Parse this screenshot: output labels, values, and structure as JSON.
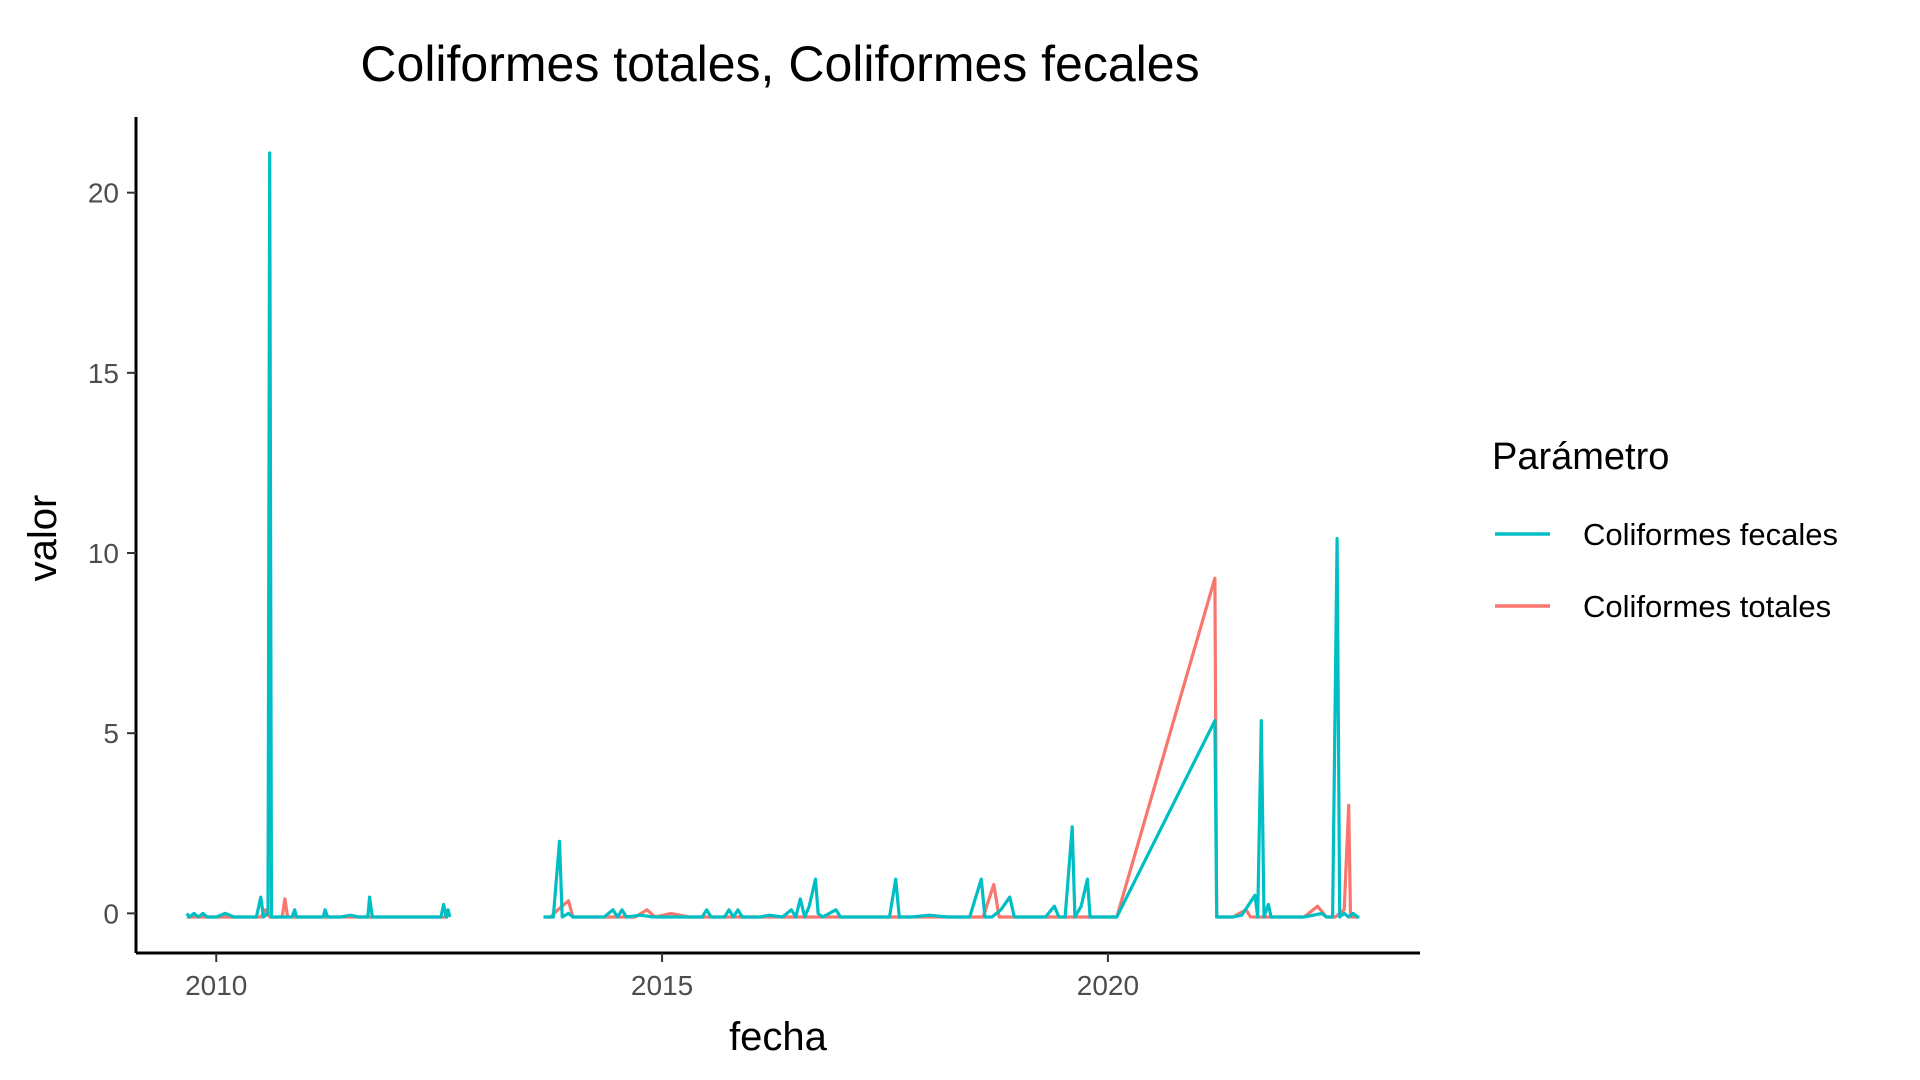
{
  "chart_data": {
    "type": "line",
    "title": "Coliformes totales, Coliformes fecales",
    "xlabel": "fecha",
    "ylabel": "valor",
    "xlim": [
      2009.1,
      2023.5
    ],
    "ylim": [
      -1.1,
      22.1
    ],
    "x_ticks": [
      2010,
      2015,
      2020
    ],
    "x_tick_labels": [
      "2010",
      "2015",
      "2020"
    ],
    "y_ticks": [
      0,
      5,
      10,
      15,
      20
    ],
    "y_tick_labels": [
      "0",
      "5",
      "10",
      "15",
      "20"
    ],
    "grid": false,
    "legend": {
      "title": "Parámetro",
      "position": "right",
      "entries": [
        "Coliformes fecales",
        "Coliformes totales"
      ]
    },
    "series": [
      {
        "name": "Coliformes totales",
        "color": "#F8766D",
        "segments": [
          [
            [
              2009.67,
              -0.1
            ],
            [
              2009.75,
              -0.1
            ],
            [
              2009.83,
              -0.1
            ],
            [
              2009.92,
              -0.1
            ],
            [
              2010.0,
              -0.1
            ],
            [
              2010.17,
              -0.1
            ],
            [
              2010.33,
              -0.1
            ],
            [
              2010.5,
              -0.1
            ],
            [
              2010.55,
              0.1
            ],
            [
              2010.6,
              -0.1
            ],
            [
              2010.74,
              -0.1
            ],
            [
              2010.77,
              0.4
            ],
            [
              2010.8,
              -0.1
            ],
            [
              2011.0,
              -0.1
            ],
            [
              2011.25,
              -0.1
            ],
            [
              2011.5,
              -0.1
            ],
            [
              2011.75,
              -0.1
            ],
            [
              2012.0,
              -0.1
            ],
            [
              2012.25,
              -0.1
            ],
            [
              2012.5,
              -0.1
            ],
            [
              2012.6,
              -0.1
            ]
          ],
          [
            [
              2013.67,
              -0.1
            ],
            [
              2013.75,
              -0.1
            ],
            [
              2013.83,
              0.1
            ],
            [
              2013.95,
              0.35
            ],
            [
              2014.0,
              -0.1
            ],
            [
              2014.2,
              -0.1
            ],
            [
              2014.4,
              -0.1
            ],
            [
              2014.55,
              -0.1
            ],
            [
              2014.7,
              -0.1
            ],
            [
              2014.83,
              0.1
            ],
            [
              2014.92,
              -0.1
            ],
            [
              2015.1,
              0.0
            ],
            [
              2015.3,
              -0.1
            ],
            [
              2015.6,
              -0.1
            ],
            [
              2015.9,
              -0.1
            ],
            [
              2016.1,
              -0.1
            ],
            [
              2016.4,
              -0.1
            ],
            [
              2016.6,
              -0.1
            ],
            [
              2016.9,
              -0.1
            ],
            [
              2017.1,
              -0.1
            ],
            [
              2017.4,
              -0.1
            ],
            [
              2017.6,
              -0.1
            ],
            [
              2017.9,
              -0.1
            ],
            [
              2018.1,
              -0.1
            ],
            [
              2018.4,
              -0.1
            ],
            [
              2018.6,
              -0.1
            ],
            [
              2018.72,
              0.8
            ],
            [
              2018.78,
              -0.1
            ],
            [
              2019.0,
              -0.1
            ],
            [
              2019.3,
              -0.1
            ],
            [
              2019.6,
              -0.1
            ],
            [
              2019.9,
              -0.1
            ],
            [
              2020.1,
              -0.1
            ],
            [
              2021.2,
              9.3
            ],
            [
              2021.22,
              -0.1
            ],
            [
              2021.4,
              -0.1
            ],
            [
              2021.55,
              0.1
            ],
            [
              2021.6,
              -0.1
            ],
            [
              2021.8,
              -0.1
            ],
            [
              2022.0,
              -0.1
            ],
            [
              2022.2,
              -0.1
            ],
            [
              2022.35,
              0.2
            ],
            [
              2022.45,
              -0.1
            ],
            [
              2022.55,
              -0.1
            ],
            [
              2022.65,
              0.1
            ],
            [
              2022.7,
              3.0
            ],
            [
              2022.72,
              -0.1
            ],
            [
              2022.8,
              -0.1
            ]
          ]
        ]
      },
      {
        "name": "Coliformes fecales",
        "color": "#00BFC4",
        "segments": [
          [
            [
              2009.67,
              0.0
            ],
            [
              2009.7,
              -0.1
            ],
            [
              2009.75,
              0.0
            ],
            [
              2009.8,
              -0.1
            ],
            [
              2009.85,
              0.0
            ],
            [
              2009.9,
              -0.1
            ],
            [
              2010.0,
              -0.1
            ],
            [
              2010.1,
              0.0
            ],
            [
              2010.2,
              -0.1
            ],
            [
              2010.3,
              -0.1
            ],
            [
              2010.45,
              -0.1
            ],
            [
              2010.5,
              0.45
            ],
            [
              2010.53,
              -0.1
            ],
            [
              2010.58,
              0.0
            ],
            [
              2010.6,
              21.1
            ],
            [
              2010.62,
              -0.1
            ],
            [
              2010.7,
              -0.1
            ],
            [
              2010.85,
              -0.1
            ],
            [
              2010.88,
              0.1
            ],
            [
              2010.9,
              -0.1
            ],
            [
              2011.1,
              -0.1
            ],
            [
              2011.2,
              -0.1
            ],
            [
              2011.22,
              0.1
            ],
            [
              2011.25,
              -0.1
            ],
            [
              2011.4,
              -0.1
            ],
            [
              2011.5,
              -0.05
            ],
            [
              2011.6,
              -0.1
            ],
            [
              2011.7,
              -0.1
            ],
            [
              2011.72,
              0.45
            ],
            [
              2011.75,
              -0.1
            ],
            [
              2012.0,
              -0.1
            ],
            [
              2012.2,
              -0.1
            ],
            [
              2012.4,
              -0.1
            ],
            [
              2012.52,
              -0.1
            ],
            [
              2012.55,
              0.25
            ],
            [
              2012.58,
              -0.1
            ],
            [
              2012.6,
              0.1
            ],
            [
              2012.62,
              -0.1
            ]
          ],
          [
            [
              2013.67,
              -0.1
            ],
            [
              2013.78,
              -0.1
            ],
            [
              2013.85,
              2.0
            ],
            [
              2013.88,
              -0.1
            ],
            [
              2013.95,
              0.0
            ],
            [
              2014.0,
              -0.1
            ],
            [
              2014.2,
              -0.1
            ],
            [
              2014.35,
              -0.1
            ],
            [
              2014.45,
              0.1
            ],
            [
              2014.5,
              -0.1
            ],
            [
              2014.55,
              0.1
            ],
            [
              2014.6,
              -0.1
            ],
            [
              2014.75,
              -0.05
            ],
            [
              2014.9,
              -0.1
            ],
            [
              2015.1,
              -0.1
            ],
            [
              2015.3,
              -0.1
            ],
            [
              2015.45,
              -0.1
            ],
            [
              2015.5,
              0.1
            ],
            [
              2015.55,
              -0.1
            ],
            [
              2015.7,
              -0.1
            ],
            [
              2015.75,
              0.1
            ],
            [
              2015.8,
              -0.1
            ],
            [
              2015.85,
              0.1
            ],
            [
              2015.9,
              -0.1
            ],
            [
              2016.1,
              -0.1
            ],
            [
              2016.2,
              -0.05
            ],
            [
              2016.35,
              -0.1
            ],
            [
              2016.45,
              0.1
            ],
            [
              2016.5,
              -0.1
            ],
            [
              2016.55,
              0.4
            ],
            [
              2016.6,
              -0.1
            ],
            [
              2016.65,
              0.2
            ],
            [
              2016.72,
              0.95
            ],
            [
              2016.75,
              0.0
            ],
            [
              2016.8,
              -0.1
            ],
            [
              2016.95,
              0.1
            ],
            [
              2017.0,
              -0.1
            ],
            [
              2017.2,
              -0.1
            ],
            [
              2017.4,
              -0.1
            ],
            [
              2017.55,
              -0.1
            ],
            [
              2017.62,
              0.95
            ],
            [
              2017.66,
              -0.1
            ],
            [
              2017.8,
              -0.1
            ],
            [
              2018.0,
              -0.05
            ],
            [
              2018.2,
              -0.1
            ],
            [
              2018.45,
              -0.1
            ],
            [
              2018.58,
              0.95
            ],
            [
              2018.62,
              -0.1
            ],
            [
              2018.7,
              -0.1
            ],
            [
              2018.8,
              0.1
            ],
            [
              2018.9,
              0.45
            ],
            [
              2018.95,
              -0.1
            ],
            [
              2019.1,
              -0.1
            ],
            [
              2019.3,
              -0.1
            ],
            [
              2019.4,
              0.2
            ],
            [
              2019.45,
              -0.1
            ],
            [
              2019.52,
              -0.1
            ],
            [
              2019.6,
              2.4
            ],
            [
              2019.63,
              -0.1
            ],
            [
              2019.7,
              0.2
            ],
            [
              2019.77,
              0.95
            ],
            [
              2019.8,
              -0.1
            ],
            [
              2019.9,
              -0.1
            ],
            [
              2020.1,
              -0.1
            ],
            [
              2021.2,
              5.35
            ],
            [
              2021.22,
              -0.1
            ],
            [
              2021.4,
              -0.1
            ],
            [
              2021.5,
              -0.05
            ],
            [
              2021.65,
              0.5
            ],
            [
              2021.68,
              -0.1
            ],
            [
              2021.72,
              5.35
            ],
            [
              2021.75,
              -0.1
            ],
            [
              2021.8,
              0.25
            ],
            [
              2021.83,
              -0.1
            ],
            [
              2022.0,
              -0.1
            ],
            [
              2022.2,
              -0.1
            ],
            [
              2022.4,
              0.0
            ],
            [
              2022.45,
              -0.1
            ],
            [
              2022.52,
              -0.1
            ],
            [
              2022.57,
              10.4
            ],
            [
              2022.6,
              -0.1
            ],
            [
              2022.65,
              0.0
            ],
            [
              2022.7,
              -0.1
            ],
            [
              2022.75,
              0.0
            ],
            [
              2022.8,
              -0.1
            ],
            [
              2022.82,
              -0.1
            ]
          ]
        ]
      }
    ]
  }
}
